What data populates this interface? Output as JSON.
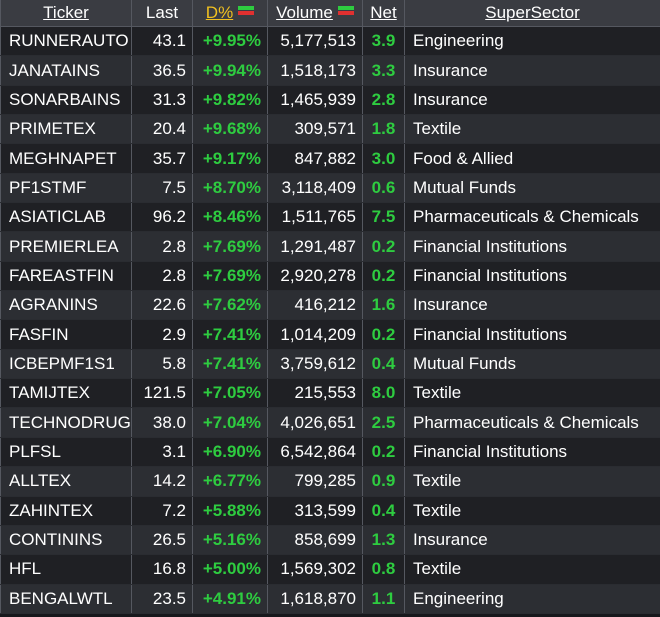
{
  "colors": {
    "positive": "#2ecc40",
    "negative": "#e03030",
    "sorted_header": "#f0c020",
    "header_bg": "#3a3c42"
  },
  "header": {
    "ticker": "Ticker",
    "last": "Last",
    "dpct": "D%",
    "volume": "Volume",
    "net": "Net",
    "supersector": "SuperSector",
    "sort_icon": "sort-toggle-icon"
  },
  "rows": [
    {
      "ticker": "RUNNERAUTO",
      "last": "43.1",
      "dpct": "+9.95%",
      "volume": "5,177,513",
      "net": "3.9",
      "sector": "Engineering"
    },
    {
      "ticker": "JANATAINS",
      "last": "36.5",
      "dpct": "+9.94%",
      "volume": "1,518,173",
      "net": "3.3",
      "sector": "Insurance"
    },
    {
      "ticker": "SONARBAINS",
      "last": "31.3",
      "dpct": "+9.82%",
      "volume": "1,465,939",
      "net": "2.8",
      "sector": "Insurance"
    },
    {
      "ticker": "PRIMETEX",
      "last": "20.4",
      "dpct": "+9.68%",
      "volume": "309,571",
      "net": "1.8",
      "sector": "Textile"
    },
    {
      "ticker": "MEGHNAPET",
      "last": "35.7",
      "dpct": "+9.17%",
      "volume": "847,882",
      "net": "3.0",
      "sector": "Food & Allied"
    },
    {
      "ticker": "PF1STMF",
      "last": "7.5",
      "dpct": "+8.70%",
      "volume": "3,118,409",
      "net": "0.6",
      "sector": "Mutual Funds"
    },
    {
      "ticker": "ASIATICLAB",
      "last": "96.2",
      "dpct": "+8.46%",
      "volume": "1,511,765",
      "net": "7.5",
      "sector": "Pharmaceuticals & Chemicals"
    },
    {
      "ticker": "PREMIERLEA",
      "last": "2.8",
      "dpct": "+7.69%",
      "volume": "1,291,487",
      "net": "0.2",
      "sector": "Financial Institutions"
    },
    {
      "ticker": "FAREASTFIN",
      "last": "2.8",
      "dpct": "+7.69%",
      "volume": "2,920,278",
      "net": "0.2",
      "sector": "Financial Institutions"
    },
    {
      "ticker": "AGRANINS",
      "last": "22.6",
      "dpct": "+7.62%",
      "volume": "416,212",
      "net": "1.6",
      "sector": "Insurance"
    },
    {
      "ticker": "FASFIN",
      "last": "2.9",
      "dpct": "+7.41%",
      "volume": "1,014,209",
      "net": "0.2",
      "sector": "Financial Institutions"
    },
    {
      "ticker": "ICBEPMF1S1",
      "last": "5.8",
      "dpct": "+7.41%",
      "volume": "3,759,612",
      "net": "0.4",
      "sector": "Mutual Funds"
    },
    {
      "ticker": "TAMIJTEX",
      "last": "121.5",
      "dpct": "+7.05%",
      "volume": "215,553",
      "net": "8.0",
      "sector": "Textile"
    },
    {
      "ticker": "TECHNODRUG",
      "last": "38.0",
      "dpct": "+7.04%",
      "volume": "4,026,651",
      "net": "2.5",
      "sector": "Pharmaceuticals & Chemicals"
    },
    {
      "ticker": "PLFSL",
      "last": "3.1",
      "dpct": "+6.90%",
      "volume": "6,542,864",
      "net": "0.2",
      "sector": "Financial Institutions"
    },
    {
      "ticker": "ALLTEX",
      "last": "14.2",
      "dpct": "+6.77%",
      "volume": "799,285",
      "net": "0.9",
      "sector": "Textile"
    },
    {
      "ticker": "ZAHINTEX",
      "last": "7.2",
      "dpct": "+5.88%",
      "volume": "313,599",
      "net": "0.4",
      "sector": "Textile"
    },
    {
      "ticker": "CONTININS",
      "last": "26.5",
      "dpct": "+5.16%",
      "volume": "858,699",
      "net": "1.3",
      "sector": "Insurance"
    },
    {
      "ticker": "HFL",
      "last": "16.8",
      "dpct": "+5.00%",
      "volume": "1,569,302",
      "net": "0.8",
      "sector": "Textile"
    },
    {
      "ticker": "BENGALWTL",
      "last": "23.5",
      "dpct": "+4.91%",
      "volume": "1,618,870",
      "net": "1.1",
      "sector": "Engineering"
    }
  ]
}
